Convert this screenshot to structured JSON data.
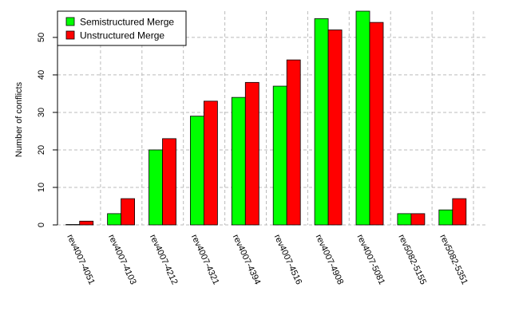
{
  "chart_data": {
    "type": "bar",
    "categories": [
      "rev4007-4051",
      "rev4007-4103",
      "rev4007-4212",
      "rev4007-4321",
      "rev4007-4394",
      "rev4007-4516",
      "rev4007-4908",
      "rev4007-5081",
      "rev5082-5155",
      "rev5082-5351"
    ],
    "series": [
      {
        "name": "Semistructured Merge",
        "color": "#00ff00",
        "values": [
          0,
          3,
          20,
          29,
          34,
          37,
          55,
          57,
          3,
          4
        ]
      },
      {
        "name": "Unstructured Merge",
        "color": "#ff0000",
        "values": [
          1,
          7,
          23,
          33,
          38,
          44,
          52,
          54,
          3,
          7
        ]
      }
    ],
    "ylabel": "Number of conflicts",
    "xlabel": "",
    "ylim": [
      0,
      57
    ],
    "yticks": [
      0,
      10,
      20,
      30,
      40,
      50
    ],
    "grid": true,
    "legend": "top-left"
  }
}
